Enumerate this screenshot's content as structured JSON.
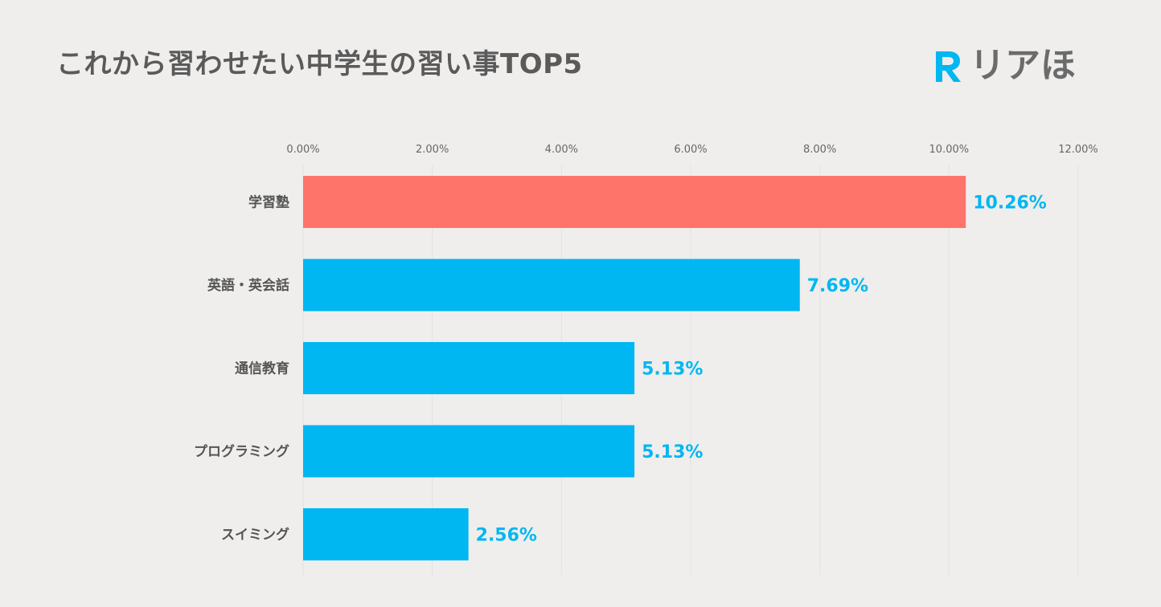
{
  "chart_data": {
    "type": "bar",
    "orientation": "horizontal",
    "title": "これから習わせたい中学生の習い事TOP5",
    "categories": [
      "学習塾",
      "英語・英会話",
      "通信教育",
      "プログラミング",
      "スイミング"
    ],
    "values": [
      10.26,
      7.69,
      5.13,
      5.13,
      2.56
    ],
    "value_labels": [
      "10.26%",
      "7.69%",
      "5.13%",
      "5.13%",
      "2.56%"
    ],
    "x_ticks": [
      0,
      2,
      4,
      6,
      8,
      10,
      12
    ],
    "x_tick_labels": [
      "0.00%",
      "2.00%",
      "4.00%",
      "6.00%",
      "8.00%",
      "10.00%",
      "12.00%"
    ],
    "xlim": [
      0,
      12
    ],
    "xlabel": "",
    "ylabel": "",
    "grid": true,
    "legend": "none"
  },
  "brand": {
    "name": "リアほ",
    "logo_letter": "R"
  },
  "colors": {
    "background": "#efeeed",
    "highlight_bar": "#ff746a",
    "bar": "#00b7f2",
    "data_label": "#00b7f2",
    "grid": "#e2e2ea",
    "logo_mark": "#00b7f2",
    "logo_text": "#6b6b6b"
  }
}
